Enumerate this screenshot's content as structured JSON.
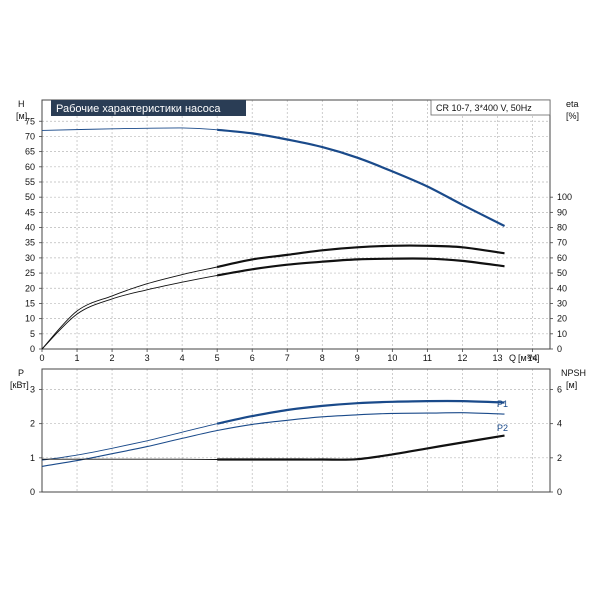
{
  "header": {
    "title": "Рабочие характеристики насоса",
    "model": "CR 10-7, 3*400 V, 50Hz"
  },
  "chart_data": [
    {
      "type": "line",
      "title": "Рабочие характеристики насоса",
      "ylabel_left": "H",
      "ylabel_left_unit": "[м]",
      "ylabel_right": "eta",
      "ylabel_right_unit": "[%]",
      "xlabel": "Q [м³/ч]",
      "xlabel_short": "Q",
      "xlabel_unit": "[м³/ч]",
      "xlim": [
        0,
        14.5
      ],
      "ylim_left": [
        0,
        82
      ],
      "ylim_right": [
        0,
        164
      ],
      "x_ticks": [
        0,
        1,
        2,
        3,
        4,
        5,
        6,
        7,
        8,
        9,
        10,
        11,
        12,
        13,
        14
      ],
      "x_tick_labels": [
        "0",
        "1",
        "2",
        "3",
        "4",
        "5",
        "6",
        "7",
        "8",
        "9",
        "10",
        "11",
        "12",
        "13",
        "14"
      ],
      "y_ticks_left": [
        0,
        5,
        10,
        15,
        20,
        25,
        30,
        35,
        40,
        45,
        50,
        55,
        60,
        65,
        70,
        75
      ],
      "y_ticks_right": [
        0,
        10,
        20,
        30,
        40,
        50,
        60,
        70,
        80,
        90,
        100
      ],
      "grid": true,
      "series": [
        {
          "axis": "left",
          "color": "#1a4a8a",
          "x": [
            0,
            2,
            4,
            5,
            6,
            7,
            8,
            9,
            10,
            11,
            12,
            13.2
          ],
          "y": [
            72,
            72.5,
            72.8,
            72.2,
            71,
            69,
            66.5,
            63,
            58.5,
            53.5,
            47.5,
            40.5
          ]
        },
        {
          "axis": "right",
          "color": "#111111",
          "x": [
            0,
            1,
            2,
            3,
            4,
            5,
            6,
            7,
            8,
            9,
            10,
            11,
            12,
            13.2
          ],
          "y": [
            0,
            25,
            35,
            43,
            49,
            54,
            59,
            62,
            65,
            67,
            68,
            68,
            67,
            63
          ]
        },
        {
          "axis": "right",
          "color": "#111111",
          "x": [
            0,
            1,
            2,
            3,
            4,
            5,
            6,
            7,
            8,
            9,
            10,
            11,
            12,
            13.2
          ],
          "y": [
            0,
            23,
            33,
            39,
            44,
            48.5,
            52.5,
            55.5,
            57.5,
            59,
            59.5,
            59.5,
            58,
            54.5
          ]
        }
      ]
    },
    {
      "type": "line",
      "ylabel_left": "P",
      "ylabel_left_unit": "[кВт]",
      "ylabel_right": "NPSH",
      "ylabel_right_unit": "[м]",
      "xlim": [
        0,
        14.5
      ],
      "ylim_left": [
        0,
        3.6
      ],
      "ylim_right": [
        0,
        7.2
      ],
      "y_ticks_left": [
        0,
        1,
        2,
        3
      ],
      "y_ticks_right": [
        0,
        2,
        4,
        6
      ],
      "grid": true,
      "series": [
        {
          "name": "P1",
          "axis": "left",
          "color": "#1a4a8a",
          "x": [
            0,
            1,
            2,
            3,
            4,
            5,
            6,
            7,
            8,
            9,
            10,
            11,
            12,
            13.2
          ],
          "y": [
            0.93,
            1.08,
            1.28,
            1.5,
            1.75,
            2.0,
            2.22,
            2.4,
            2.52,
            2.6,
            2.64,
            2.66,
            2.66,
            2.62
          ]
        },
        {
          "name": "P2",
          "axis": "left",
          "color": "#1a4a8a",
          "x": [
            0,
            1,
            2,
            3,
            4,
            5,
            6,
            7,
            8,
            9,
            10,
            11,
            12,
            13.2
          ],
          "y": [
            0.75,
            0.92,
            1.12,
            1.33,
            1.57,
            1.8,
            1.98,
            2.1,
            2.2,
            2.26,
            2.3,
            2.31,
            2.32,
            2.28
          ]
        },
        {
          "axis": "right",
          "color": "#111111",
          "x": [
            0,
            2,
            4,
            5,
            6,
            7,
            8,
            9,
            10,
            11,
            12,
            13.2
          ],
          "y": [
            1.92,
            1.92,
            1.92,
            1.9,
            1.9,
            1.9,
            1.9,
            1.92,
            2.2,
            2.55,
            2.9,
            3.3
          ]
        }
      ]
    }
  ]
}
